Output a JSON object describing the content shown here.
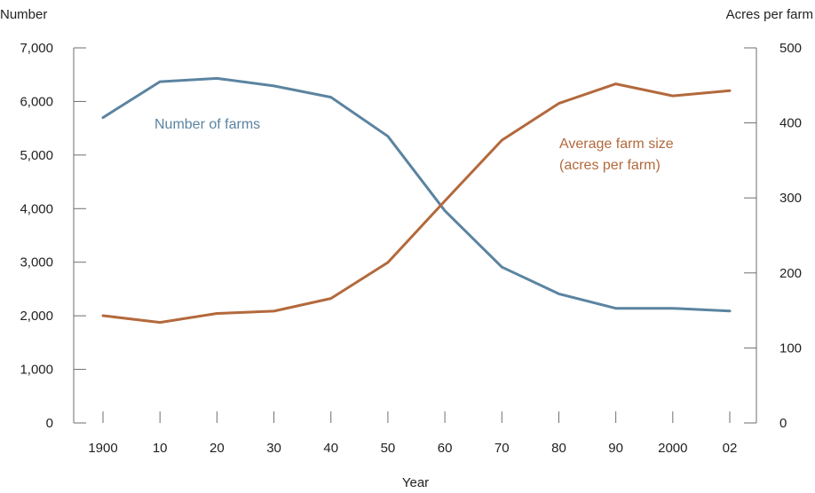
{
  "chart_data": {
    "type": "line",
    "xlabel": "Year",
    "ylabel_left": "Number",
    "ylabel_right": "Acres per farm",
    "categories": [
      "1900",
      "10",
      "20",
      "30",
      "40",
      "50",
      "60",
      "70",
      "80",
      "90",
      "2000",
      "02"
    ],
    "y_left": {
      "min": 0,
      "max": 7000,
      "ticks": [
        0,
        1000,
        2000,
        3000,
        4000,
        5000,
        6000,
        7000
      ],
      "tick_labels": [
        "0",
        "1,000",
        "2,000",
        "3,000",
        "4,000",
        "5,000",
        "6,000",
        "7,000"
      ]
    },
    "y_right": {
      "min": 0,
      "max": 500,
      "ticks": [
        0,
        100,
        200,
        300,
        400,
        500
      ],
      "tick_labels": [
        "0",
        "100",
        "200",
        "300",
        "400",
        "500"
      ]
    },
    "grid": false,
    "series": [
      {
        "key": "farms",
        "label": "Number of farms",
        "axis": "left",
        "color": "#5b84a0",
        "values": [
          5700,
          6370,
          6430,
          6290,
          6080,
          5350,
          3960,
          2910,
          2410,
          2140,
          2140,
          2090
        ]
      },
      {
        "key": "size",
        "label_lines": [
          "Average farm size",
          "(acres per farm)"
        ],
        "axis": "right",
        "color": "#b3693c",
        "values": [
          143,
          134,
          146,
          149,
          166,
          214,
          296,
          377,
          426,
          452,
          436,
          443
        ]
      }
    ]
  }
}
